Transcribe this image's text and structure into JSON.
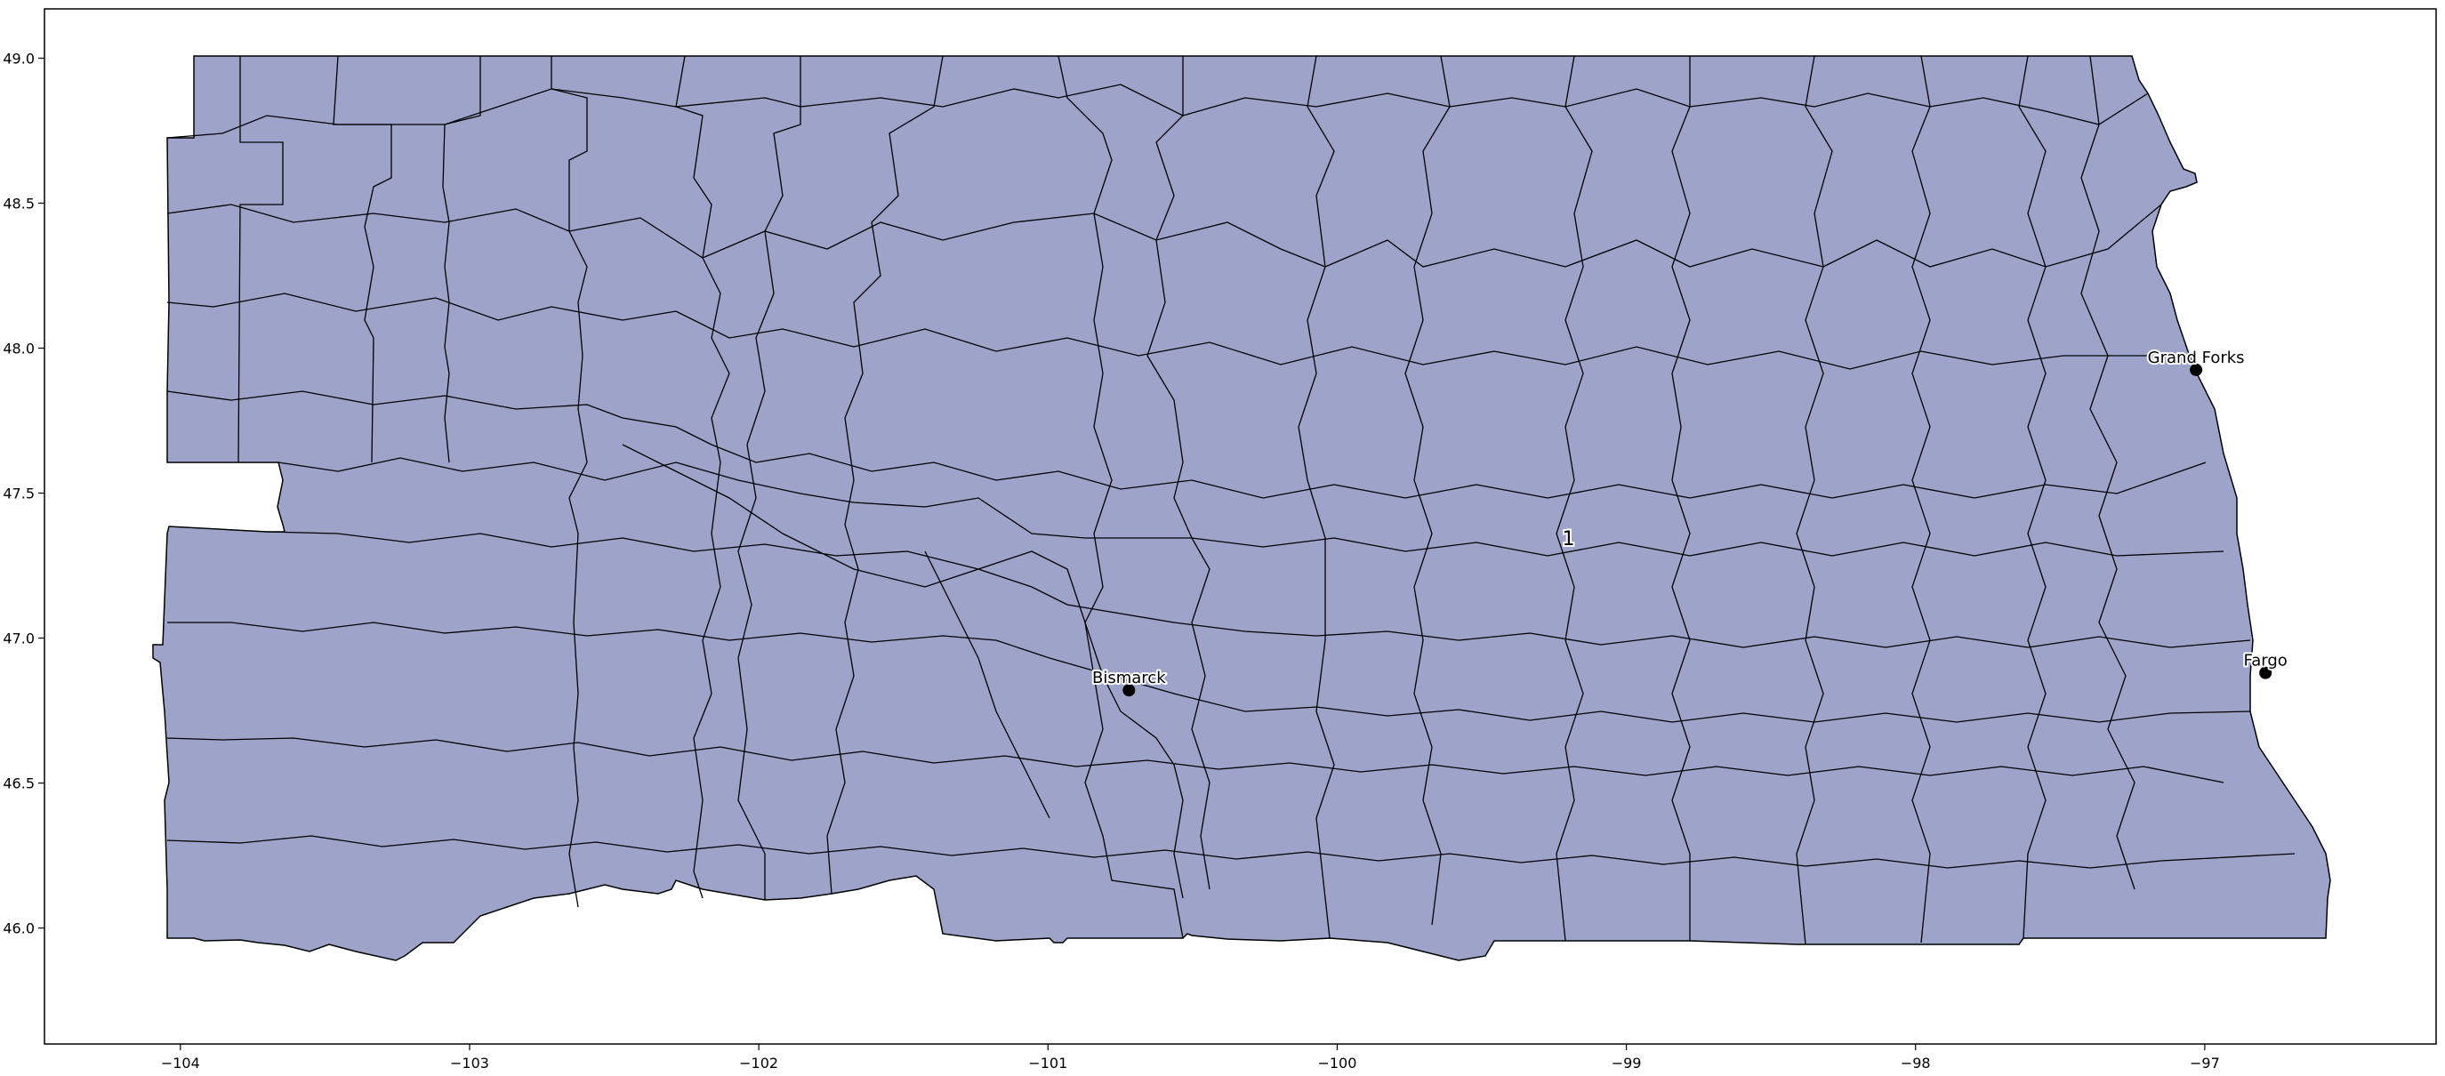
{
  "map": {
    "fill_color": "#9da3c9",
    "edge_color": "#000000",
    "x_ticks": [
      {
        "value": -104,
        "label": "−104"
      },
      {
        "value": -103,
        "label": "−103"
      },
      {
        "value": -102,
        "label": "−102"
      },
      {
        "value": -101,
        "label": "−101"
      },
      {
        "value": -100,
        "label": "−100"
      },
      {
        "value": -99,
        "label": "−99"
      },
      {
        "value": -98,
        "label": "−98"
      },
      {
        "value": -97,
        "label": "−97"
      }
    ],
    "y_ticks": [
      {
        "value": 46.0,
        "label": "46.0"
      },
      {
        "value": 46.5,
        "label": "46.5"
      },
      {
        "value": 47.0,
        "label": "47.0"
      },
      {
        "value": 47.5,
        "label": "47.5"
      },
      {
        "value": 48.0,
        "label": "48.0"
      },
      {
        "value": 48.5,
        "label": "48.5"
      },
      {
        "value": 49.0,
        "label": "49.0"
      }
    ],
    "xlim": [
      -104.47,
      -96.2
    ],
    "ylim": [
      45.6,
      49.17
    ],
    "cities": [
      {
        "name": "Grand Forks",
        "lon": -97.03,
        "lat": 47.925
      },
      {
        "name": "Bismarck",
        "lon": -100.72,
        "lat": 46.82
      },
      {
        "name": "Fargo",
        "lon": -96.79,
        "lat": 46.88
      }
    ],
    "district_label": {
      "text": "1",
      "lon": -99.2,
      "lat": 47.32
    }
  }
}
